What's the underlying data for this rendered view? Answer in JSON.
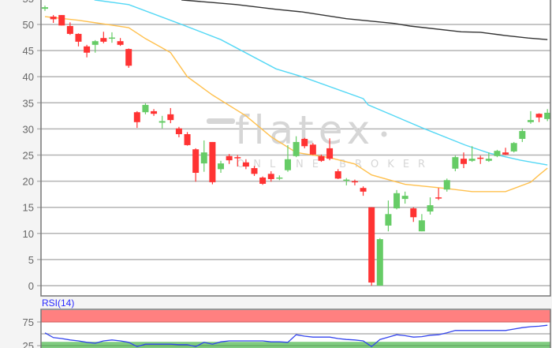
{
  "watermark": {
    "brand": "flatex",
    "tagline": "ONLINE BROKER"
  },
  "colors": {
    "up": "#66cc66",
    "down": "#ff3333",
    "ma_orange": "#ffc04d",
    "ma_cyan": "#55d8f5",
    "ma_black": "#333333",
    "rsi_line": "#3344ee",
    "rsi_overbought_band": "#ff8080",
    "rsi_oversold_band": "#80cc80"
  },
  "chart_data": [
    {
      "type": "candlestick",
      "ylim": [
        -2,
        54.7
      ],
      "yticks": [
        "0",
        "5",
        "10",
        "15",
        "20",
        "25",
        "30",
        "35",
        "40",
        "45",
        "50",
        "55"
      ],
      "grid": true,
      "ohlc": [
        [
          53.0,
          53.6,
          52.6,
          53.3
        ],
        [
          51.5,
          51.8,
          50.3,
          51.0
        ],
        [
          51.8,
          51.8,
          49.8,
          49.8
        ],
        [
          49.7,
          50.4,
          48.0,
          48.2
        ],
        [
          48.2,
          48.3,
          45.8,
          46.7
        ],
        [
          45.8,
          46.1,
          43.7,
          44.6
        ],
        [
          46.1,
          47.0,
          44.6,
          46.8
        ],
        [
          47.4,
          48.6,
          46.4,
          46.7
        ],
        [
          47.3,
          48.5,
          46.5,
          47.5
        ],
        [
          46.8,
          47.4,
          45.9,
          46.1
        ],
        [
          45.3,
          45.4,
          41.7,
          42.1
        ],
        [
          33.2,
          33.4,
          30.2,
          31.3
        ],
        [
          33.2,
          34.9,
          32.8,
          34.6
        ],
        [
          33.4,
          33.8,
          32.5,
          32.9
        ],
        [
          31.2,
          32.5,
          30.1,
          31.5
        ],
        [
          32.8,
          34.0,
          31.1,
          31.7
        ],
        [
          30.1,
          30.4,
          28.4,
          29.0
        ],
        [
          29.0,
          29.4,
          26.8,
          26.9
        ],
        [
          26.1,
          26.3,
          19.9,
          21.6
        ],
        [
          23.4,
          27.8,
          21.8,
          25.5
        ],
        [
          27.5,
          27.5,
          19.4,
          19.8
        ],
        [
          22.3,
          23.9,
          21.6,
          23.4
        ],
        [
          24.8,
          25.2,
          23.3,
          24.0
        ],
        [
          24.6,
          25.0,
          22.8,
          24.4
        ],
        [
          23.6,
          24.2,
          22.3,
          22.8
        ],
        [
          22.5,
          22.9,
          21.0,
          21.4
        ],
        [
          20.7,
          20.9,
          19.3,
          19.5
        ],
        [
          21.4,
          21.9,
          19.9,
          20.4
        ],
        [
          20.5,
          21.1,
          20.2,
          20.7
        ],
        [
          22.1,
          26.9,
          21.8,
          24.2
        ],
        [
          24.8,
          28.6,
          24.6,
          27.5
        ],
        [
          28.1,
          28.3,
          26.3,
          26.7
        ],
        [
          27.0,
          27.3,
          25.0,
          25.1
        ],
        [
          24.8,
          25.1,
          23.7,
          23.9
        ],
        [
          26.3,
          28.2,
          24.0,
          24.3
        ],
        [
          21.9,
          22.3,
          20.4,
          20.5
        ],
        [
          20.2,
          20.6,
          19.2,
          20.3
        ],
        [
          20.0,
          20.3,
          19.2,
          19.8
        ],
        [
          18.7,
          19.0,
          17.2,
          18.0
        ],
        [
          15.0,
          15.0,
          0.0,
          0.6
        ],
        [
          0.0,
          9.1,
          0.0,
          8.9
        ],
        [
          11.5,
          16.3,
          10.4,
          13.7
        ],
        [
          14.8,
          18.3,
          14.6,
          17.7
        ],
        [
          16.6,
          18.0,
          15.7,
          17.2
        ],
        [
          14.8,
          15.0,
          12.2,
          13.1
        ],
        [
          10.4,
          13.7,
          10.4,
          12.5
        ],
        [
          14.2,
          16.9,
          13.6,
          15.4
        ],
        [
          16.9,
          18.7,
          16.4,
          16.7
        ],
        [
          18.4,
          20.5,
          18.0,
          20.2
        ],
        [
          22.4,
          24.9,
          21.9,
          24.6
        ],
        [
          24.3,
          25.5,
          22.5,
          23.3
        ],
        [
          23.9,
          26.7,
          23.7,
          24.3
        ],
        [
          24.5,
          24.9,
          23.3,
          24.3
        ],
        [
          23.9,
          25.5,
          23.7,
          24.3
        ],
        [
          24.8,
          26.0,
          24.6,
          25.8
        ],
        [
          25.5,
          26.4,
          25.0,
          25.1
        ],
        [
          25.7,
          27.5,
          25.5,
          27.3
        ],
        [
          28.1,
          30.1,
          27.5,
          29.6
        ],
        [
          31.3,
          33.4,
          31.0,
          31.7
        ],
        [
          32.9,
          33.0,
          31.3,
          32.2
        ],
        [
          31.9,
          33.8,
          31.5,
          33.1
        ]
      ],
      "moving_averages": [
        {
          "color_key": "ma_orange",
          "points": [
            [
              0,
              51.5
            ],
            [
              4,
              50.8
            ],
            [
              10,
              49.4
            ],
            [
              12,
              47.3
            ],
            [
              15,
              44.6
            ],
            [
              17,
              40.0
            ],
            [
              20,
              36.5
            ],
            [
              24,
              32.5
            ],
            [
              27,
              28.5
            ],
            [
              30,
              25.5
            ],
            [
              34,
              24.5
            ],
            [
              37,
              23.3
            ],
            [
              39,
              21.2
            ],
            [
              43,
              19.4
            ],
            [
              48,
              18.6
            ],
            [
              51,
              18.0
            ],
            [
              55,
              18.0
            ],
            [
              58,
              19.8
            ],
            [
              59,
              21.2
            ],
            [
              60,
              22.5
            ]
          ]
        },
        {
          "color_key": "ma_cyan",
          "points": [
            [
              5.9,
              54.7
            ],
            [
              10,
              53.8
            ],
            [
              16,
              50.2
            ],
            [
              21,
              47.1
            ],
            [
              27.6,
              41.5
            ],
            [
              30.7,
              40.0
            ],
            [
              38,
              35.8
            ],
            [
              38.6,
              34.6
            ],
            [
              45.2,
              30.1
            ],
            [
              50.2,
              26.9
            ],
            [
              53,
              25.4
            ],
            [
              56.8,
              24.0
            ],
            [
              60,
              23.1
            ]
          ]
        },
        {
          "color_key": "ma_black",
          "points": [
            [
              16.3,
              54.7
            ],
            [
              20,
              54.2
            ],
            [
              22.9,
              53.8
            ],
            [
              27.6,
              52.9
            ],
            [
              30.7,
              52.4
            ],
            [
              36,
              51.1
            ],
            [
              41.7,
              50.2
            ],
            [
              43.6,
              49.7
            ],
            [
              49.7,
              48.6
            ],
            [
              52,
              48.5
            ],
            [
              54.9,
              47.9
            ],
            [
              57.7,
              47.4
            ],
            [
              60,
              47.1
            ]
          ]
        }
      ]
    },
    {
      "type": "line",
      "title": "RSI(14)",
      "yticks": [
        "75",
        "25"
      ],
      "overbought_band": [
        75,
        100
      ],
      "oversold_band": [
        0,
        33
      ],
      "values": [
        52,
        42,
        40,
        37,
        35,
        32,
        30,
        35,
        37,
        35,
        32,
        23,
        28,
        28,
        28,
        28,
        27,
        27,
        23,
        32,
        28,
        33,
        35,
        35,
        35,
        35,
        35,
        33,
        33,
        32,
        48,
        45,
        43,
        43,
        43,
        40,
        38,
        37,
        35,
        23,
        38,
        43,
        48,
        46,
        43,
        44,
        47,
        48,
        52,
        57,
        57,
        57,
        57,
        57,
        57,
        57,
        60,
        63,
        65,
        66,
        68
      ]
    }
  ]
}
